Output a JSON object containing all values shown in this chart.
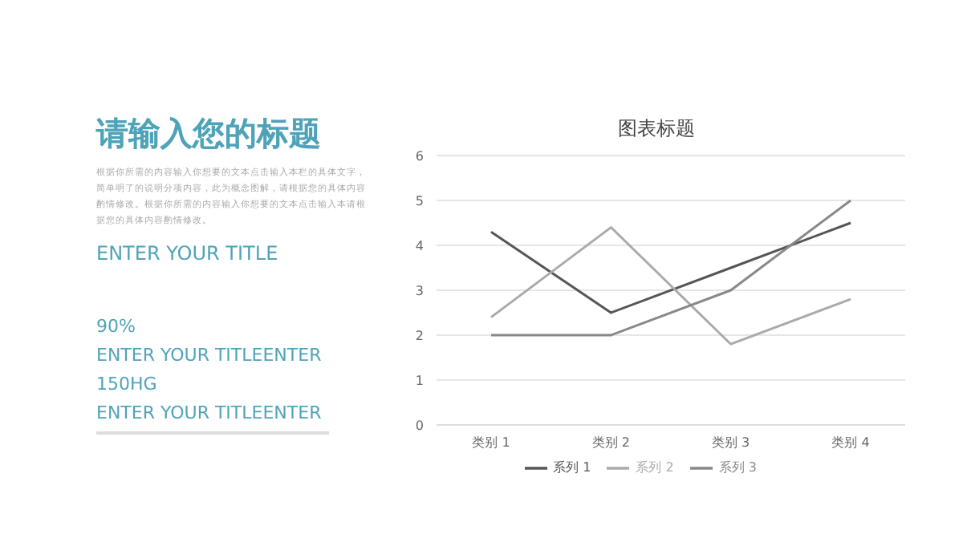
{
  "chart_data": [
    {
      "type": "other",
      "title": "请输入您的标题",
      "annotations": [
        "根据你所需的内容输入你想要的文本点击输入本栏的具体文字，简单明了的说明分项内容，此为概念图解，请根据您的具体内容酌情修改。根据你所需的内容输入你想要的文本点击输入本请根据您的具体内容酌情修改。",
        "ENTER YOUR TITLE",
        "90%",
        "ENTER YOUR TITLEENTER",
        "150HG",
        "ENTER YOUR TITLEENTER"
      ]
    },
    {
      "type": "line",
      "title": "图表标题",
      "categories": [
        "类别 1",
        "类别 2",
        "类别 3",
        "类别 4"
      ],
      "series": [
        {
          "name": "系列 1",
          "color": "#555555",
          "values": [
            4.3,
            2.5,
            3.5,
            4.5
          ]
        },
        {
          "name": "系列 2",
          "color": "#aaaaaa",
          "values": [
            2.4,
            4.4,
            1.8,
            2.8
          ]
        },
        {
          "name": "系列 3",
          "color": "#888888",
          "values": [
            2,
            2,
            3,
            5
          ]
        }
      ],
      "ylim": [
        0,
        6
      ],
      "yticks": [
        0,
        1,
        2,
        3,
        4,
        5,
        6
      ],
      "grid": "y",
      "legend": "bottom",
      "marker": "none",
      "line_style": "solid"
    }
  ]
}
